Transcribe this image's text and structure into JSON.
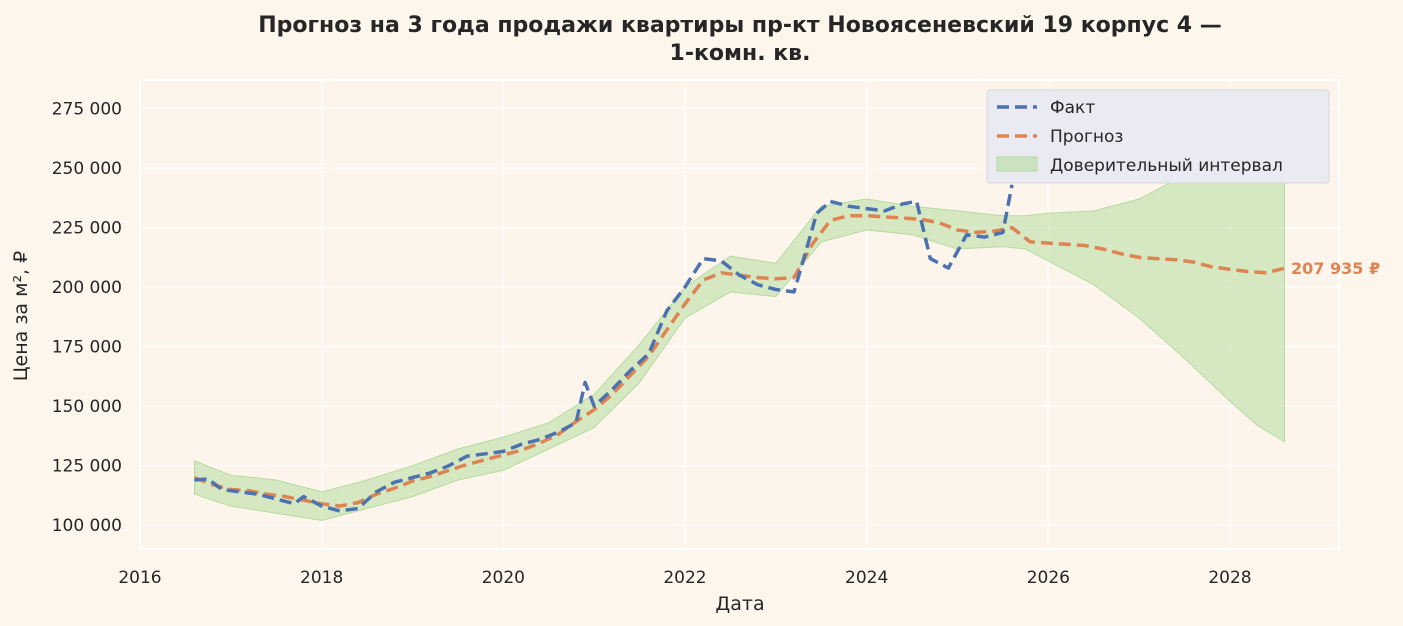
{
  "chart_data": {
    "type": "line",
    "title_line1": "Прогноз на 3 года продажи квартиры  пр-кт Новоясеневский 19 корпус 4 —",
    "title_line2": "1-комн. кв.",
    "xlabel": "Дата",
    "ylabel": "Цена за м², ₽",
    "xlim": [
      2016.0,
      2029.2
    ],
    "ylim": [
      90000,
      287000
    ],
    "x_ticks": [
      2016,
      2018,
      2020,
      2022,
      2024,
      2026,
      2028
    ],
    "x_tick_labels": [
      "2016",
      "2018",
      "2020",
      "2022",
      "2024",
      "2026",
      "2028"
    ],
    "y_ticks": [
      100000,
      125000,
      150000,
      175000,
      200000,
      225000,
      250000,
      275000
    ],
    "y_tick_labels": [
      "100 000",
      "125 000",
      "150 000",
      "175 000",
      "200 000",
      "225 000",
      "250 000",
      "275 000"
    ],
    "grid": true,
    "legend_position": "top-right",
    "colors": {
      "fact": "#4c72b0",
      "forecast": "#dd8452",
      "ci_fill": "#b5dca0",
      "background": "#fdf6ec",
      "plot_bg": "#fdf5eb",
      "legend_bg": "#eaeaf2",
      "grid": "#ffffff"
    },
    "series": [
      {
        "name": "Факт",
        "style": "dashed",
        "x": [
          2016.6,
          2016.75,
          2016.9,
          2017.1,
          2017.3,
          2017.5,
          2017.7,
          2017.8,
          2018.0,
          2018.2,
          2018.4,
          2018.6,
          2018.8,
          2019.0,
          2019.2,
          2019.4,
          2019.6,
          2019.8,
          2020.0,
          2020.2,
          2020.4,
          2020.6,
          2020.8,
          2020.9,
          2021.0,
          2021.2,
          2021.4,
          2021.6,
          2021.8,
          2022.0,
          2022.2,
          2022.4,
          2022.6,
          2022.8,
          2023.0,
          2023.2,
          2023.3,
          2023.45,
          2023.6,
          2023.8,
          2024.0,
          2024.2,
          2024.4,
          2024.55,
          2024.7,
          2024.9,
          2025.1,
          2025.3,
          2025.5,
          2025.6
        ],
        "y": [
          119000,
          119500,
          115000,
          114000,
          113000,
          111000,
          109000,
          112000,
          108000,
          106000,
          107000,
          114000,
          118000,
          120000,
          122000,
          125000,
          129000,
          130000,
          131000,
          134000,
          136000,
          139000,
          143000,
          160000,
          150000,
          157000,
          165000,
          172000,
          190000,
          200000,
          212000,
          211000,
          205000,
          201000,
          199000,
          198000,
          211000,
          231000,
          236000,
          234000,
          233000,
          232000,
          235000,
          236000,
          212000,
          208000,
          222000,
          221000,
          223000,
          243000
        ]
      },
      {
        "name": "Прогноз",
        "style": "dashed",
        "x": [
          2016.6,
          2016.8,
          2017.0,
          2017.2,
          2017.4,
          2017.6,
          2017.8,
          2018.0,
          2018.2,
          2018.4,
          2018.6,
          2018.8,
          2019.0,
          2019.2,
          2019.4,
          2019.6,
          2019.8,
          2020.0,
          2020.2,
          2020.4,
          2020.6,
          2020.8,
          2021.0,
          2021.2,
          2021.4,
          2021.6,
          2021.8,
          2022.0,
          2022.2,
          2022.4,
          2022.6,
          2022.8,
          2023.0,
          2023.2,
          2023.4,
          2023.6,
          2023.8,
          2024.0,
          2024.2,
          2024.4,
          2024.6,
          2024.8,
          2025.0,
          2025.2,
          2025.4,
          2025.6,
          2025.8,
          2026.0,
          2026.2,
          2026.4,
          2026.6,
          2026.8,
          2027.0,
          2027.2,
          2027.4,
          2027.6,
          2027.8,
          2028.0,
          2028.2,
          2028.4,
          2028.6
        ],
        "y": [
          120000,
          117000,
          115000,
          114500,
          113000,
          112000,
          110500,
          109000,
          108000,
          109500,
          113000,
          115500,
          118500,
          120500,
          123000,
          125500,
          127500,
          129500,
          131500,
          134500,
          138000,
          143500,
          148500,
          155000,
          163000,
          171000,
          182000,
          193000,
          203000,
          206000,
          205000,
          204000,
          203500,
          204000,
          218000,
          228000,
          230000,
          230000,
          229500,
          229000,
          228500,
          227000,
          224000,
          223000,
          223500,
          225000,
          219000,
          218500,
          218000,
          217500,
          216000,
          214000,
          212500,
          212000,
          211500,
          210500,
          208500,
          207500,
          206500,
          206000,
          207935
        ]
      }
    ],
    "confidence_interval": {
      "name": "Доверительный интервал",
      "x": [
        2016.6,
        2017.0,
        2017.5,
        2018.0,
        2018.5,
        2019.0,
        2019.5,
        2020.0,
        2020.5,
        2021.0,
        2021.5,
        2022.0,
        2022.5,
        2023.0,
        2023.5,
        2024.0,
        2024.5,
        2025.0,
        2025.5,
        2025.75,
        2026.0,
        2026.5,
        2027.0,
        2027.5,
        2028.0,
        2028.3,
        2028.6
      ],
      "upper": [
        127000,
        121000,
        119000,
        114000,
        119000,
        125000,
        132000,
        137000,
        143000,
        155000,
        176000,
        200000,
        213000,
        210000,
        234000,
        237000,
        234000,
        232000,
        230000,
        230000,
        231000,
        232000,
        237000,
        247000,
        257000,
        265000,
        276000
      ],
      "lower": [
        113000,
        108000,
        105000,
        102000,
        107000,
        112000,
        119000,
        123000,
        132000,
        141000,
        160000,
        187000,
        198000,
        196000,
        219000,
        224000,
        222000,
        216000,
        217000,
        216000,
        211000,
        201000,
        187000,
        170000,
        152000,
        142000,
        135000
      ]
    },
    "end_label": "207 935 ₽",
    "legend": [
      "Факт",
      "Прогноз",
      "Доверительный интервал"
    ]
  }
}
